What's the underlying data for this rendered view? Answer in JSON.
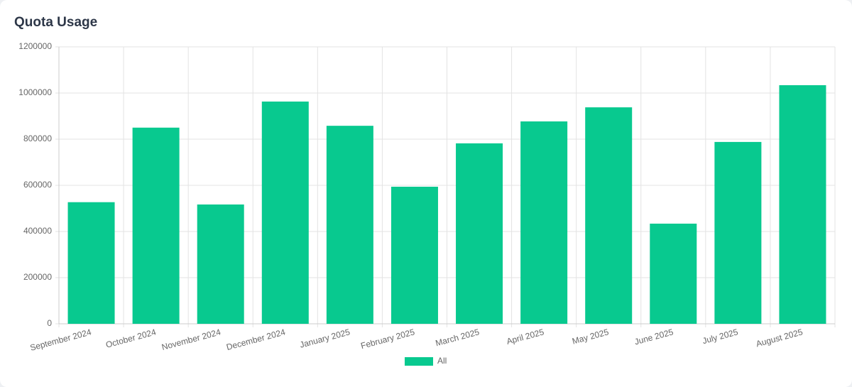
{
  "chart_data": {
    "type": "bar",
    "title": "Quota Usage",
    "categories": [
      "September 2024",
      "October 2024",
      "November 2024",
      "December 2024",
      "January 2025",
      "February 2025",
      "March 2025",
      "April 2025",
      "May 2025",
      "June 2025",
      "July 2025",
      "August 2025"
    ],
    "series": [
      {
        "name": "All",
        "color": "#08c98f",
        "values": [
          527000,
          850000,
          517000,
          963000,
          858000,
          594000,
          782000,
          877000,
          938000,
          434000,
          788000,
          1034000
        ]
      }
    ],
    "ylim": [
      0,
      1200000
    ],
    "yticks": [
      0,
      200000,
      400000,
      600000,
      800000,
      1000000,
      1200000
    ],
    "grid": true,
    "legend": "bottom"
  }
}
